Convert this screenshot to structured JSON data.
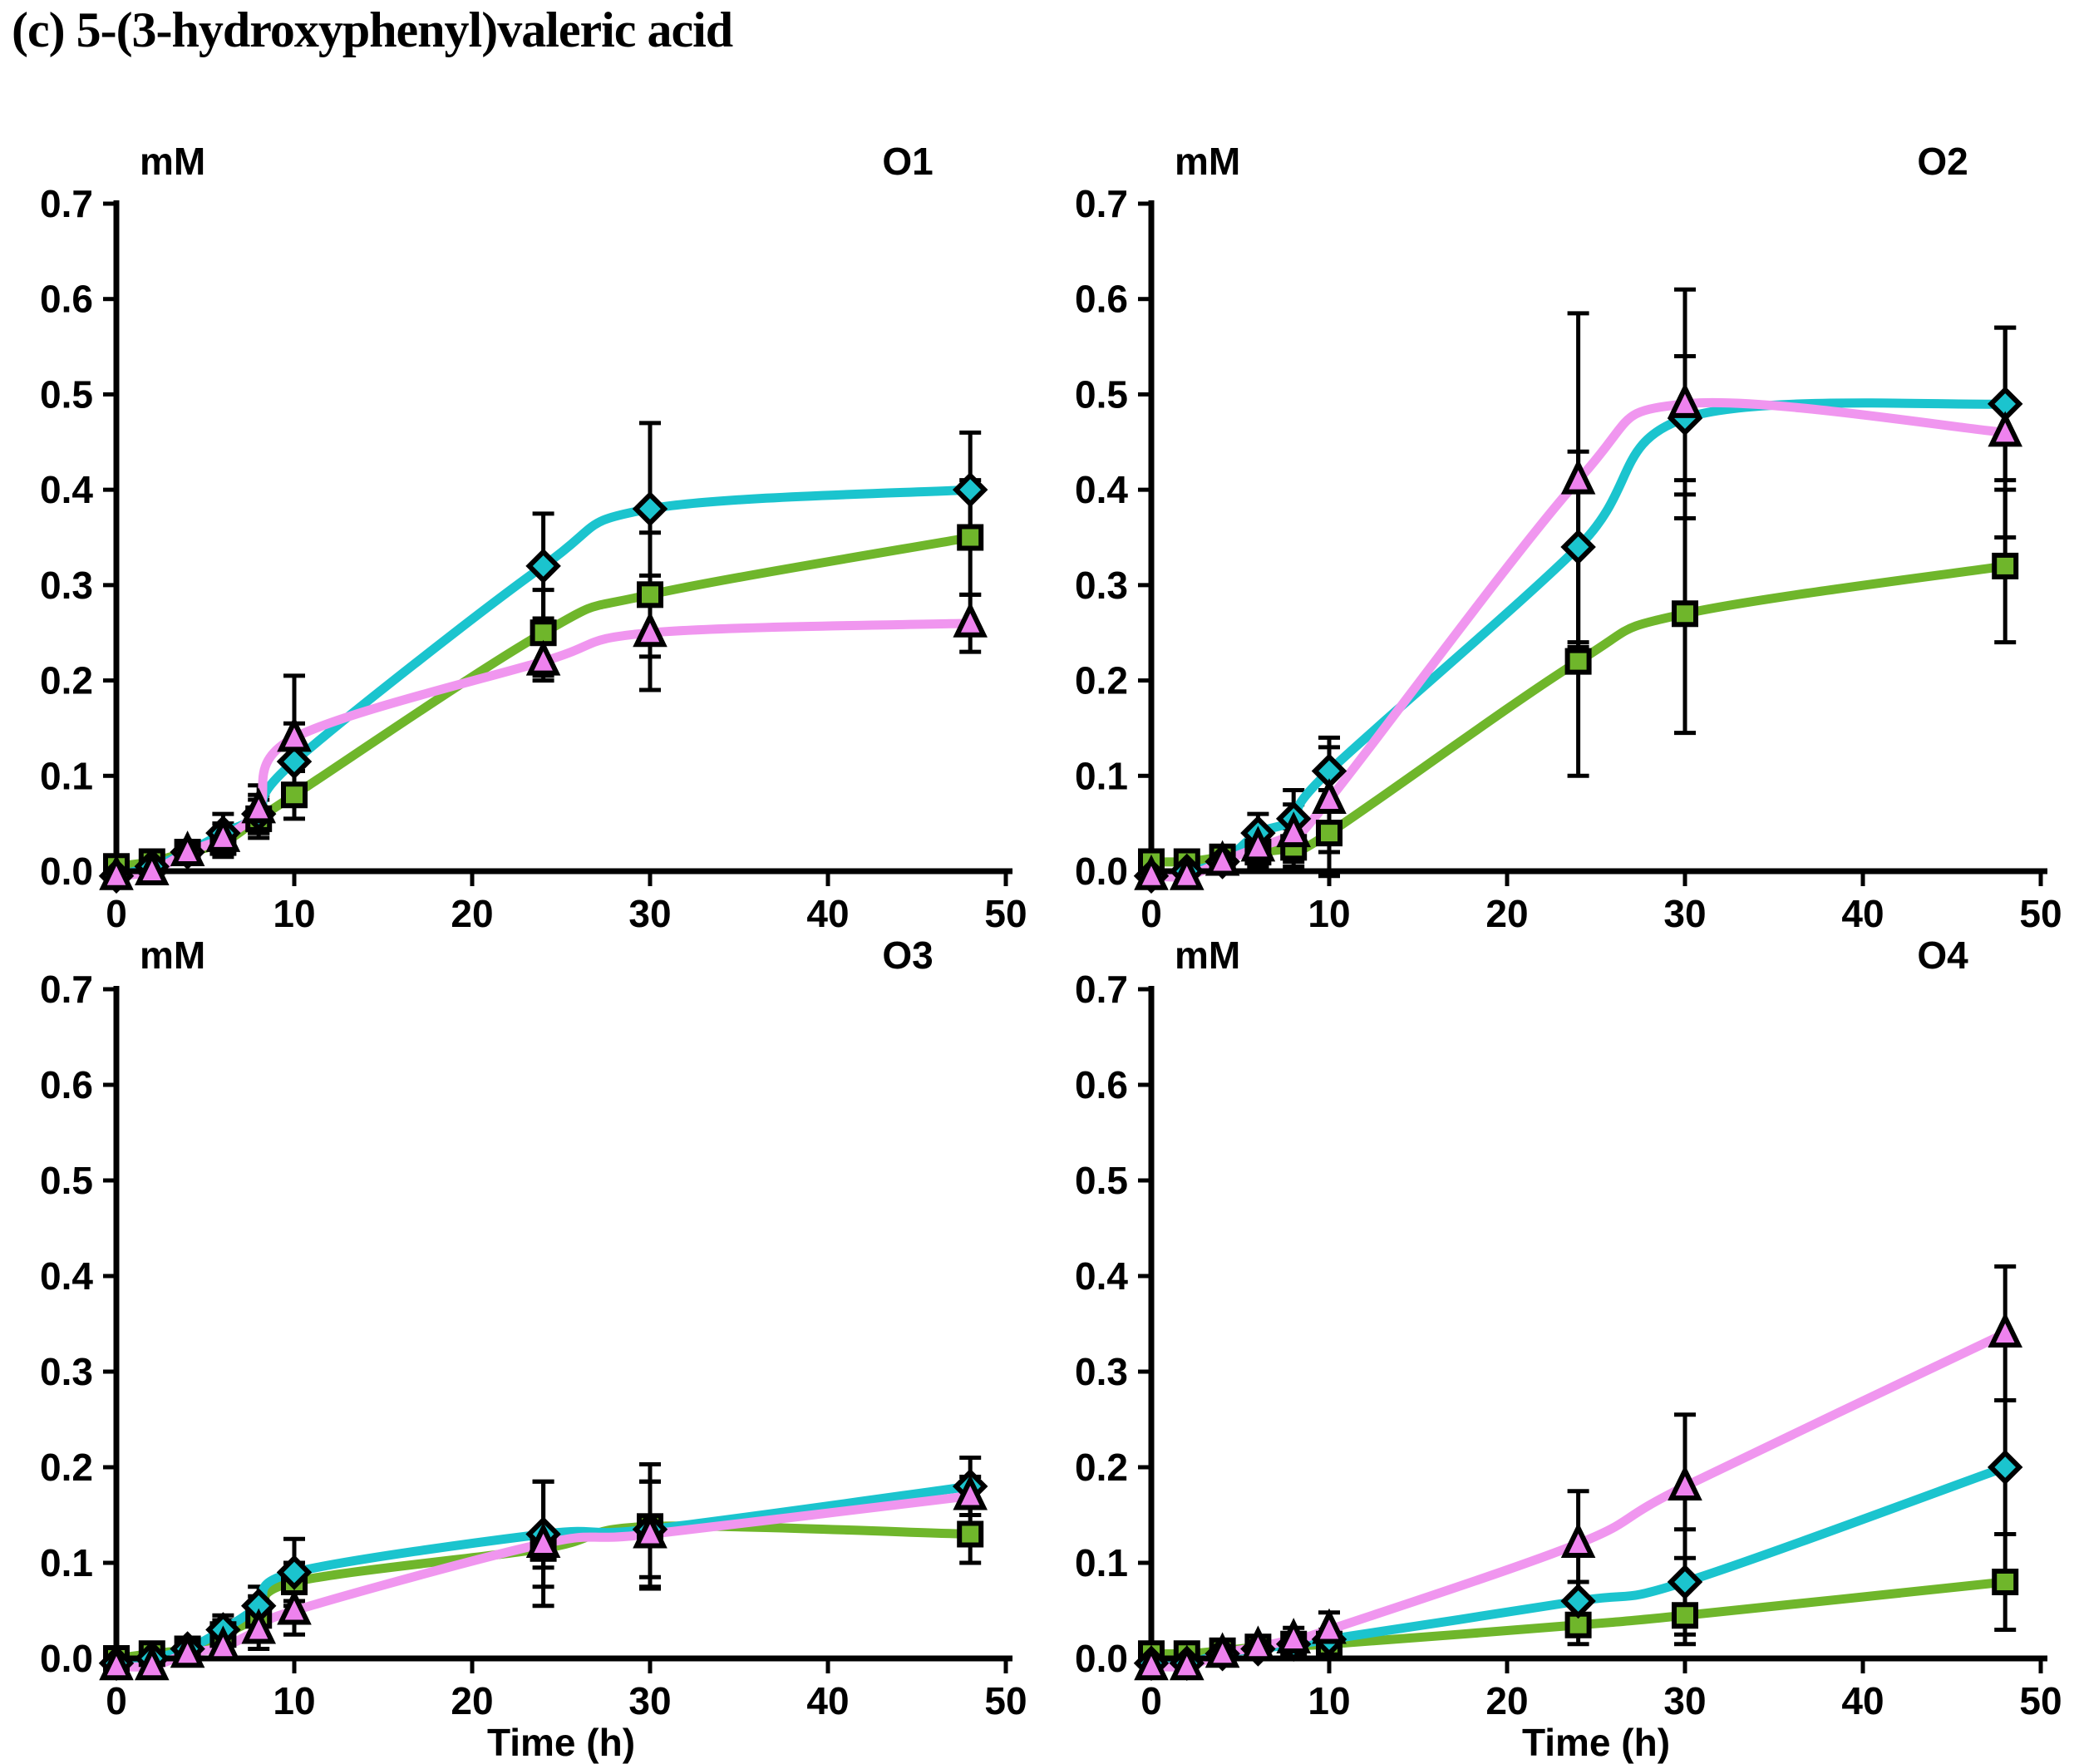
{
  "title": "(c) 5-(3-hydroxyphenyl)valeric acid",
  "axes": {
    "y_unit_label": "mM",
    "x_axis_label": "Time (h)",
    "ylim": [
      0,
      0.7
    ],
    "xlim": [
      0,
      50
    ],
    "y_tick_labels": [
      "0.0",
      "0.1",
      "0.2",
      "0.3",
      "0.4",
      "0.5",
      "0.6",
      "0.7"
    ],
    "x_tick_labels": [
      "0",
      "10",
      "20",
      "30",
      "40",
      "50"
    ],
    "grid": false
  },
  "colors": {
    "green": "#6FB62B",
    "cyan": "#1BC4CE",
    "violet_line": "#F096EF",
    "violet_marker": "#EE82EE",
    "axis": "#000000"
  },
  "chart_data": [
    {
      "id": "O1",
      "type": "line",
      "x": [
        0,
        2,
        4,
        6,
        8,
        10,
        24,
        30,
        48
      ],
      "series": [
        {
          "name": "green-square",
          "marker": "square",
          "line_color": "#6FB62B",
          "marker_color": "#6FB62B",
          "values": [
            0.005,
            0.01,
            0.02,
            0.03,
            0.055,
            0.08,
            0.25,
            0.29,
            0.35
          ],
          "errors": [
            0.005,
            0.005,
            0.01,
            0.015,
            0.02,
            0.025,
            0.045,
            0.065,
            0.06
          ]
        },
        {
          "name": "cyan-diamond",
          "marker": "diamond",
          "line_color": "#1BC4CE",
          "marker_color": "#1BC4CE",
          "values": [
            -0.005,
            0.005,
            0.02,
            0.04,
            0.06,
            0.115,
            0.32,
            0.38,
            0.4
          ],
          "errors": [
            0.005,
            0.005,
            0.01,
            0.02,
            0.02,
            0.04,
            0.055,
            0.09,
            0.06
          ]
        },
        {
          "name": "violet-triangle",
          "marker": "triangle",
          "line_color": "#F096EF",
          "marker_color": "#EE82EE",
          "values": [
            -0.005,
            0,
            0.02,
            0.035,
            0.065,
            0.14,
            0.22,
            0.25,
            0.26
          ],
          "errors": [
            0,
            0.005,
            0.01,
            0.015,
            0.025,
            0.065,
            0.02,
            0.06,
            0.03
          ]
        }
      ]
    },
    {
      "id": "O2",
      "type": "line",
      "x": [
        0,
        2,
        4,
        6,
        8,
        10,
        24,
        30,
        48
      ],
      "series": [
        {
          "name": "green-square",
          "marker": "square",
          "line_color": "#6FB62B",
          "marker_color": "#6FB62B",
          "values": [
            0.01,
            0.01,
            0.015,
            0.02,
            0.025,
            0.04,
            0.22,
            0.27,
            0.32
          ],
          "errors": [
            0.005,
            0.005,
            0.01,
            0.015,
            0.02,
            0.045,
            0.12,
            0.125,
            0.08
          ]
        },
        {
          "name": "cyan-diamond",
          "marker": "diamond",
          "line_color": "#1BC4CE",
          "marker_color": "#1BC4CE",
          "values": [
            -0.005,
            0,
            0.01,
            0.04,
            0.055,
            0.105,
            0.34,
            0.475,
            0.49
          ],
          "errors": [
            0.005,
            0.005,
            0.01,
            0.02,
            0.03,
            0.035,
            0.1,
            0.065,
            0.08
          ]
        },
        {
          "name": "violet-triangle",
          "marker": "triangle",
          "line_color": "#F096EF",
          "marker_color": "#EE82EE",
          "values": [
            -0.005,
            -0.005,
            0.01,
            0.025,
            0.04,
            0.075,
            0.41,
            0.49,
            0.46
          ],
          "errors": [
            0.005,
            0.005,
            0.01,
            0.02,
            0.03,
            0.055,
            0.175,
            0.12,
            0.11
          ]
        }
      ]
    },
    {
      "id": "O3",
      "type": "line",
      "x": [
        0,
        2,
        4,
        6,
        8,
        10,
        24,
        30,
        48
      ],
      "series": [
        {
          "name": "green-square",
          "marker": "square",
          "line_color": "#6FB62B",
          "marker_color": "#6FB62B",
          "values": [
            0,
            0.005,
            0.01,
            0.025,
            0.045,
            0.08,
            0.115,
            0.138,
            0.13
          ],
          "errors": [
            0,
            0.005,
            0.01,
            0.015,
            0.02,
            0.02,
            0.02,
            0.065,
            0.03
          ]
        },
        {
          "name": "cyan-diamond",
          "marker": "diamond",
          "line_color": "#1BC4CE",
          "marker_color": "#1BC4CE",
          "values": [
            -0.005,
            0,
            0.01,
            0.03,
            0.055,
            0.09,
            0.13,
            0.135,
            0.18
          ],
          "errors": [
            0,
            0.005,
            0.005,
            0.015,
            0.02,
            0.035,
            0.055,
            0.05,
            0.03
          ]
        },
        {
          "name": "violet-triangle",
          "marker": "triangle",
          "line_color": "#F096EF",
          "marker_color": "#EE82EE",
          "values": [
            -0.008,
            -0.008,
            0.005,
            0.012,
            0.03,
            0.05,
            0.12,
            0.13,
            0.17
          ],
          "errors": [
            0,
            0,
            0.005,
            0.01,
            0.02,
            0.025,
            0.065,
            0.055,
            0.02
          ]
        }
      ]
    },
    {
      "id": "O4",
      "type": "line",
      "x": [
        0,
        2,
        4,
        6,
        8,
        10,
        24,
        30,
        48
      ],
      "series": [
        {
          "name": "green-square",
          "marker": "square",
          "line_color": "#6FB62B",
          "marker_color": "#6FB62B",
          "values": [
            0.005,
            0.005,
            0.008,
            0.012,
            0.015,
            0.015,
            0.035,
            0.045,
            0.08
          ],
          "errors": [
            0.005,
            0.005,
            0.005,
            0.008,
            0.01,
            0.01,
            0.02,
            0.03,
            0.05
          ]
        },
        {
          "name": "cyan-diamond",
          "marker": "diamond",
          "line_color": "#1BC4CE",
          "marker_color": "#1BC4CE",
          "values": [
            -0.005,
            -0.005,
            0.005,
            0.01,
            0.015,
            0.02,
            0.06,
            0.08,
            0.2
          ],
          "errors": [
            0,
            0,
            0.005,
            0.005,
            0.01,
            0.01,
            0.02,
            0.055,
            0.07
          ]
        },
        {
          "name": "violet-triangle",
          "marker": "triangle",
          "line_color": "#F096EF",
          "marker_color": "#EE82EE",
          "values": [
            -0.008,
            -0.008,
            0.005,
            0.012,
            0.02,
            0.03,
            0.12,
            0.18,
            0.34
          ],
          "errors": [
            0,
            0,
            0.005,
            0.008,
            0.012,
            0.018,
            0.055,
            0.075,
            0.07
          ]
        }
      ]
    }
  ]
}
